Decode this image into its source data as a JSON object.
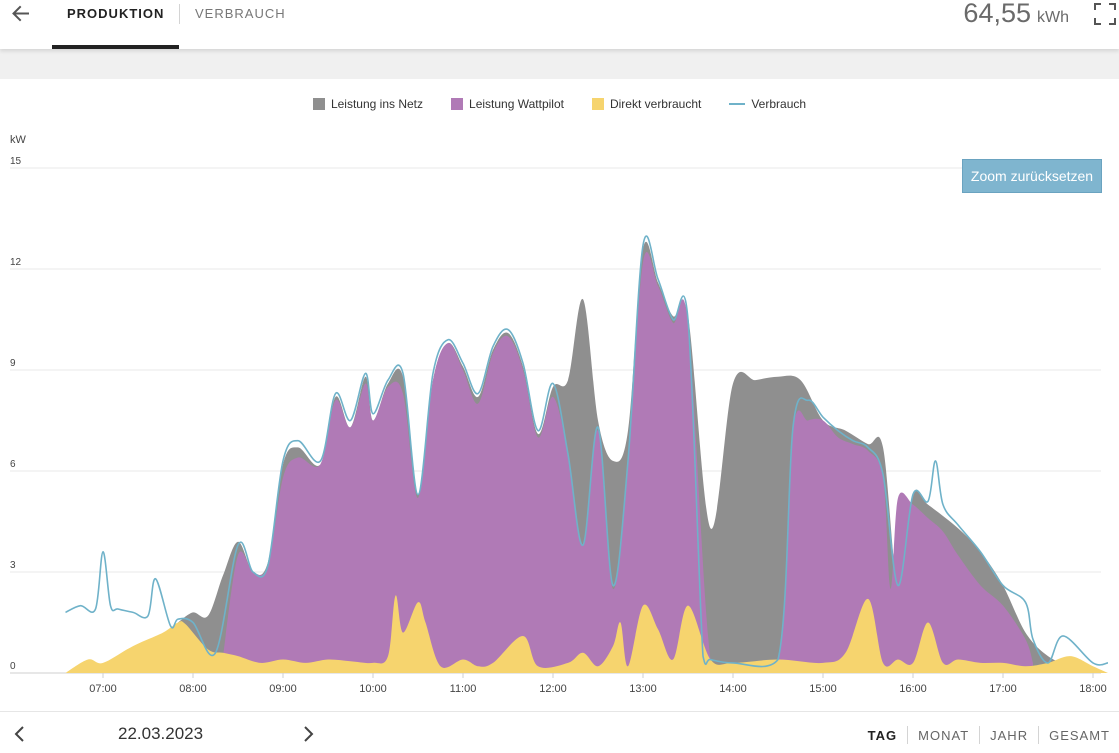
{
  "header": {
    "tabs": [
      {
        "label": "PRODUKTION",
        "active": true
      },
      {
        "label": "VERBRAUCH",
        "active": false
      }
    ],
    "energy_value": "64,55",
    "energy_unit": "kWh",
    "back_icon": "arrow-left-icon",
    "fullscreen_icon": "fullscreen-icon"
  },
  "chart": {
    "zoom_reset_label": "Zoom zurücksetzen"
  },
  "chart_data": {
    "type": "area",
    "title": "",
    "ylabel": "kW",
    "ylim": [
      0,
      15
    ],
    "y_ticks": [
      "15",
      "12",
      "9",
      "6",
      "3",
      "0"
    ],
    "x_ticks": [
      "07:00",
      "08:00",
      "09:00",
      "10:00",
      "11:00",
      "12:00",
      "13:00",
      "14:00",
      "15:00",
      "16:00",
      "17:00",
      "18:00"
    ],
    "grid": true,
    "legend_position": "top-center",
    "colors": {
      "Leistung ins Netz": "#8f8f8f",
      "Leistung Wattpilot": "#b07ab6",
      "Direkt verbraucht": "#f6d46e",
      "Verbrauch": "#6fb2c9"
    },
    "series": [
      {
        "name": "Direkt verbraucht",
        "style": "area",
        "x": [
          "06:35",
          "06:50",
          "07:00",
          "07:20",
          "07:40",
          "07:50",
          "07:55",
          "08:10",
          "08:20",
          "08:30",
          "08:45",
          "09:00",
          "09:15",
          "09:30",
          "09:45",
          "10:00",
          "10:10",
          "10:15",
          "10:20",
          "10:30",
          "10:35",
          "10:45",
          "11:00",
          "11:10",
          "11:20",
          "11:40",
          "11:50",
          "12:10",
          "12:20",
          "12:30",
          "12:40",
          "12:45",
          "12:50",
          "13:00",
          "13:10",
          "13:20",
          "13:30",
          "13:45",
          "14:00",
          "14:30",
          "15:00",
          "15:15",
          "15:30",
          "15:40",
          "15:50",
          "16:00",
          "16:10",
          "16:20",
          "16:30",
          "16:45",
          "17:00",
          "17:15",
          "17:30",
          "17:45",
          "18:00",
          "18:10"
        ],
        "values": [
          0,
          0.4,
          0.3,
          0.8,
          1.2,
          1.5,
          1.45,
          0.7,
          0.6,
          0.5,
          0.3,
          0.4,
          0.3,
          0.4,
          0.35,
          0.3,
          0.5,
          2.3,
          1.2,
          2.1,
          1.5,
          0.2,
          0.4,
          0.2,
          0.3,
          1.1,
          0.2,
          0.3,
          0.6,
          0.2,
          0.8,
          1.5,
          0.2,
          2.0,
          1.3,
          0.4,
          2.0,
          0.4,
          0.3,
          0.4,
          0.3,
          0.6,
          2.2,
          0.3,
          0.4,
          0.3,
          1.5,
          0.3,
          0.4,
          0.3,
          0.3,
          0.2,
          0.3,
          0.5,
          0.2,
          0
        ]
      },
      {
        "name": "Leistung Wattpilot",
        "style": "area",
        "x": [
          "08:20",
          "08:30",
          "08:40",
          "08:50",
          "09:00",
          "09:10",
          "09:25",
          "09:35",
          "09:45",
          "09:55",
          "10:00",
          "10:10",
          "10:20",
          "10:30",
          "10:40",
          "10:50",
          "11:00",
          "11:10",
          "11:20",
          "11:30",
          "11:40",
          "11:50",
          "12:00",
          "12:10",
          "12:20",
          "12:30",
          "12:40",
          "12:50",
          "13:00",
          "13:10",
          "13:20",
          "13:30",
          "13:45",
          "14:00",
          "14:30",
          "14:40",
          "14:50",
          "15:00",
          "15:10",
          "15:20",
          "15:30",
          "15:40",
          "15:45",
          "15:50",
          "16:00",
          "16:10",
          "16:20",
          "16:30",
          "16:45",
          "17:00",
          "17:15",
          "17:20"
        ],
        "values": [
          0.5,
          3.5,
          3.0,
          3.2,
          5.8,
          6.4,
          6.2,
          8.1,
          7.3,
          8.6,
          7.5,
          8.5,
          8.3,
          5.2,
          8.7,
          9.8,
          9.0,
          8.0,
          9.5,
          10.0,
          9.0,
          7.0,
          8.2,
          6.5,
          3.8,
          7.2,
          2.5,
          6.2,
          12.2,
          11.5,
          10.4,
          10.4,
          0.4,
          0.3,
          0.4,
          7.2,
          7.5,
          7.5,
          7.0,
          6.8,
          6.6,
          5.8,
          2.5,
          5.2,
          5.0,
          4.6,
          4.2,
          3.5,
          2.6,
          2.0,
          1.0,
          0.3
        ]
      },
      {
        "name": "Leistung ins Netz",
        "style": "area",
        "x": [
          "07:50",
          "08:00",
          "08:10",
          "08:20",
          "08:30",
          "08:40",
          "08:50",
          "09:00",
          "09:10",
          "09:25",
          "09:35",
          "09:45",
          "09:55",
          "10:00",
          "10:10",
          "10:20",
          "10:30",
          "10:40",
          "10:50",
          "11:00",
          "11:10",
          "11:20",
          "11:30",
          "11:40",
          "11:50",
          "12:00",
          "12:10",
          "12:20",
          "12:30",
          "12:40",
          "12:50",
          "13:00",
          "13:10",
          "13:20",
          "13:30",
          "13:45",
          "14:00",
          "14:15",
          "14:30",
          "14:45",
          "15:00",
          "15:15",
          "15:30",
          "15:40",
          "15:50",
          "16:00",
          "16:10",
          "16:30",
          "16:45",
          "17:00",
          "17:15",
          "17:30",
          "17:45"
        ],
        "values": [
          1.5,
          1.8,
          1.7,
          2.9,
          3.9,
          3.0,
          3.3,
          6.2,
          6.7,
          6.2,
          8.2,
          7.3,
          8.8,
          7.5,
          8.6,
          8.8,
          5.3,
          8.7,
          9.8,
          9.1,
          8.2,
          9.6,
          10.1,
          9.1,
          7.1,
          8.5,
          8.7,
          11.1,
          7.5,
          6.3,
          7.2,
          12.6,
          11.6,
          10.6,
          10.6,
          4.3,
          8.6,
          8.7,
          8.8,
          8.7,
          7.5,
          7.2,
          6.8,
          6.7,
          2.6,
          5.3,
          5.0,
          4.3,
          3.6,
          2.6,
          1.2,
          0.5,
          0.2
        ]
      },
      {
        "name": "Verbrauch",
        "style": "line",
        "x": [
          "06:35",
          "06:45",
          "06:55",
          "07:00",
          "07:05",
          "07:10",
          "07:20",
          "07:30",
          "07:35",
          "07:45",
          "07:50",
          "08:00",
          "08:15",
          "08:30",
          "08:40",
          "08:50",
          "09:00",
          "09:10",
          "09:25",
          "09:35",
          "09:45",
          "09:55",
          "10:00",
          "10:10",
          "10:20",
          "10:30",
          "10:40",
          "10:50",
          "11:00",
          "11:10",
          "11:20",
          "11:30",
          "11:40",
          "11:50",
          "12:00",
          "12:10",
          "12:20",
          "12:30",
          "12:40",
          "12:50",
          "13:00",
          "13:10",
          "13:20",
          "13:30",
          "13:40",
          "13:45",
          "14:00",
          "14:30",
          "14:40",
          "14:50",
          "15:00",
          "15:10",
          "15:20",
          "15:30",
          "15:40",
          "15:50",
          "16:00",
          "16:10",
          "16:15",
          "16:20",
          "16:30",
          "16:45",
          "17:00",
          "17:15",
          "17:20",
          "17:30",
          "17:40",
          "18:00",
          "18:10"
        ],
        "values": [
          1.8,
          2.0,
          1.9,
          3.6,
          2.0,
          1.9,
          1.8,
          1.7,
          2.8,
          1.4,
          1.6,
          1.5,
          0.6,
          3.8,
          3.0,
          3.2,
          6.3,
          6.9,
          6.3,
          8.3,
          7.5,
          8.9,
          7.7,
          8.7,
          8.9,
          5.3,
          8.9,
          9.9,
          9.2,
          8.3,
          9.7,
          10.2,
          9.2,
          7.2,
          8.6,
          6.5,
          3.8,
          7.3,
          2.6,
          6.3,
          12.7,
          11.7,
          10.5,
          10.5,
          0.5,
          0.4,
          0.3,
          0.4,
          7.3,
          8.1,
          7.6,
          7.2,
          6.9,
          6.7,
          5.9,
          2.6,
          5.3,
          5.1,
          6.3,
          5.0,
          4.4,
          3.6,
          2.6,
          2.1,
          1.0,
          0.3,
          1.1,
          0.3,
          0.3
        ]
      }
    ]
  },
  "footer": {
    "date": "22.03.2023",
    "prev_icon": "chevron-left-icon",
    "next_icon": "chevron-right-icon",
    "periods": [
      {
        "label": "TAG",
        "active": true
      },
      {
        "label": "MONAT",
        "active": false
      },
      {
        "label": "JAHR",
        "active": false
      },
      {
        "label": "GESAMT",
        "active": false
      }
    ]
  }
}
